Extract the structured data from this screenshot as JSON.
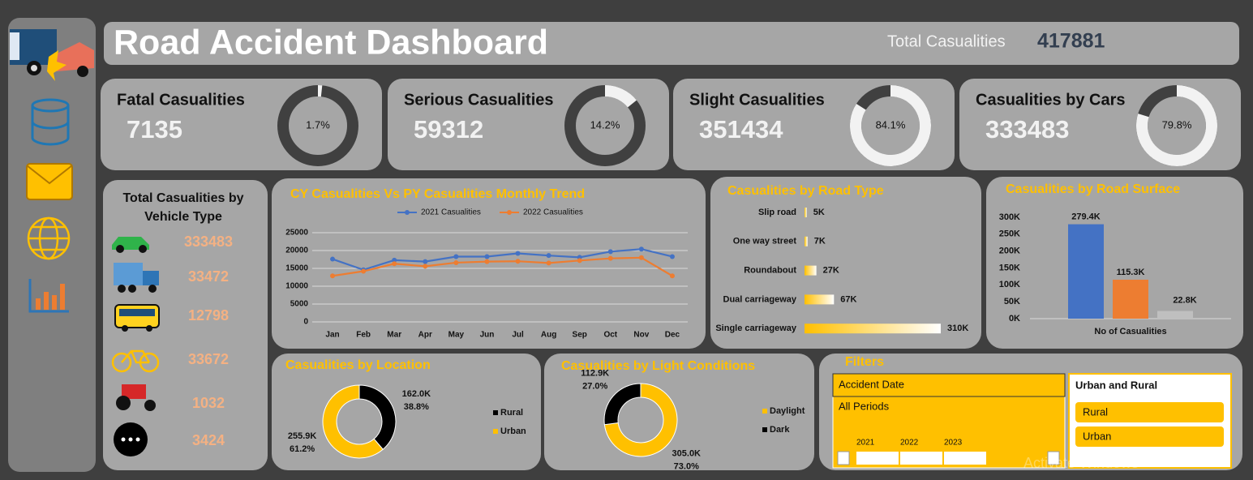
{
  "header": {
    "title": "Road Accident Dashboard",
    "total_label": "Total Casualities",
    "total_value": 417881
  },
  "kpis": [
    {
      "title": "Fatal Casualities",
      "value": 7135,
      "share": 1.7,
      "share_label": "1.7%"
    },
    {
      "title": "Serious Casualities",
      "value": 59312,
      "share": 14.2,
      "share_label": "14.2%"
    },
    {
      "title": "Slight Casualities",
      "value": 351434,
      "share": 84.1,
      "share_label": "84.1%"
    },
    {
      "title": "Casualities by Cars",
      "value": 333483,
      "share": 79.8,
      "share_label": "79.8%"
    }
  ],
  "vehicle_types": {
    "title": "Total Casualities by Vehicle Type",
    "values": [
      333483,
      33472,
      12798,
      33672,
      1032,
      3424
    ]
  },
  "chart_data": [
    {
      "type": "line",
      "title": "CY Casualities Vs PY Casualities Monthly Trend",
      "categories": [
        "Jan",
        "Feb",
        "Mar",
        "Apr",
        "May",
        "Jun",
        "Jul",
        "Aug",
        "Sep",
        "Oct",
        "Nov",
        "Dec"
      ],
      "series": [
        {
          "name": "2021 Casualities",
          "color": "#4472c4",
          "values": [
            17600,
            14600,
            17300,
            16900,
            18300,
            18300,
            19200,
            18600,
            18100,
            19700,
            20400,
            18300
          ]
        },
        {
          "name": "2022 Casualities",
          "color": "#ed7d31",
          "values": [
            12900,
            14200,
            16300,
            15600,
            16600,
            16900,
            17000,
            16500,
            17200,
            17800,
            18000,
            12900
          ]
        }
      ],
      "ylim": [
        0,
        25000
      ],
      "yticks": [
        0,
        5000,
        10000,
        15000,
        20000,
        25000
      ],
      "grid": true
    },
    {
      "type": "hbar",
      "title": "Casualities by Road Type",
      "categories": [
        "Slip road",
        "One way street",
        "Roundabout",
        "Dual carriageway",
        "Single carriageway"
      ],
      "values": [
        5,
        7,
        27,
        67,
        310
      ],
      "value_labels": [
        "5K",
        "7K",
        "27K",
        "67K",
        "310K"
      ],
      "color": "#ffc000"
    },
    {
      "type": "bar",
      "title": "Casualities by Road Surface",
      "xlabel": "No of Casualities",
      "values": [
        279.4,
        115.3,
        22.8
      ],
      "value_labels": [
        "279.4K",
        "115.3K",
        "22.8K"
      ],
      "colors": [
        "#4472c4",
        "#ed7d31",
        "#bfbfbf"
      ],
      "ylim": [
        0,
        300
      ],
      "yticks": [
        {
          "value": 0,
          "label": "0K"
        },
        {
          "value": 50,
          "label": "50K"
        },
        {
          "value": 100,
          "label": "100K"
        },
        {
          "value": 150,
          "label": "150K"
        },
        {
          "value": 200,
          "label": "200K"
        },
        {
          "value": 250,
          "label": "250K"
        },
        {
          "value": 300,
          "label": "300K"
        }
      ],
      "grid": false
    },
    {
      "type": "donut",
      "title": "Casualities by Location",
      "categories": [
        "Rural",
        "Urban"
      ],
      "values": [
        162.0,
        255.9
      ],
      "value_labels": [
        "162.0K",
        "255.9K"
      ],
      "percents": [
        38.8,
        61.2
      ],
      "percent_labels": [
        "38.8%",
        "61.2%"
      ],
      "colors": [
        "#000000",
        "#ffc000"
      ]
    },
    {
      "type": "donut",
      "title": "Casualities by Light Conditions",
      "categories": [
        "Daylight",
        "Dark"
      ],
      "values": [
        305.0,
        112.9
      ],
      "value_labels": [
        "305.0K",
        "112.9K"
      ],
      "percents": [
        73.0,
        27.0
      ],
      "percent_labels": [
        "73.0%",
        "27.0%"
      ],
      "colors": [
        "#ffc000",
        "#000000"
      ]
    }
  ],
  "filters": {
    "title": "Filters",
    "date_slicer": {
      "title": "Accident Date",
      "selection": "All Periods",
      "years": [
        "2021",
        "2022",
        "2023"
      ]
    },
    "area_slicer": {
      "title": "Urban and Rural",
      "items": [
        "Rural",
        "Urban"
      ]
    }
  },
  "watermark": "Activate Windows"
}
